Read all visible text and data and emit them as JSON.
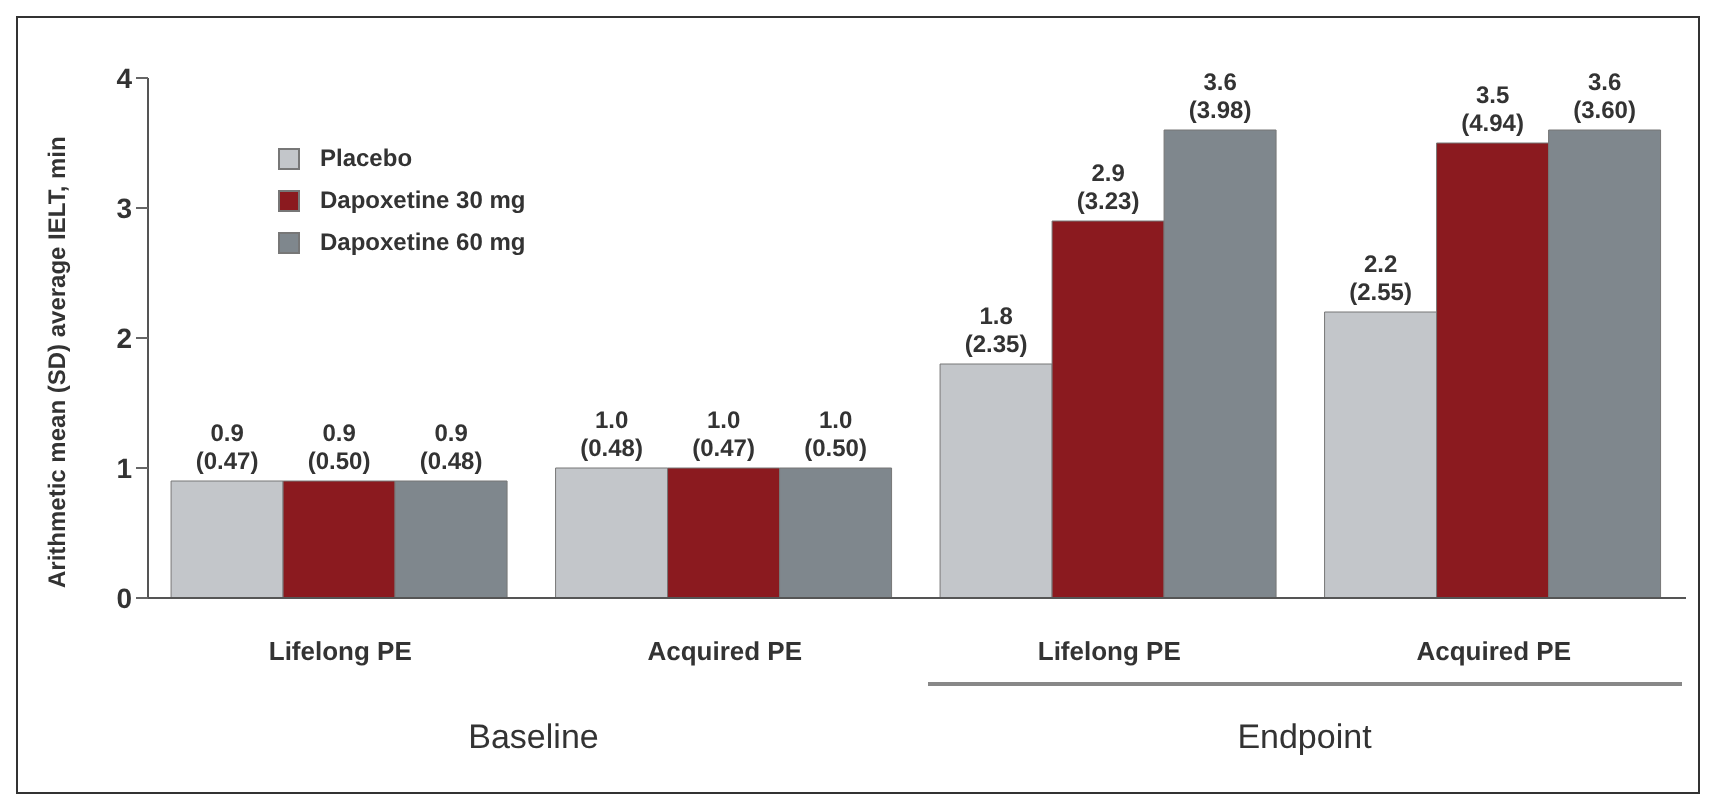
{
  "chart_data": {
    "type": "bar",
    "ylabel": "Arithmetic mean (SD) average IELT, min",
    "categories": [
      "Lifelong PE",
      "Acquired PE",
      "Lifelong PE",
      "Acquired PE"
    ],
    "series": [
      {
        "name": "Placebo",
        "color": "#c3c6ca",
        "values": [
          0.9,
          1.0,
          1.8,
          2.2
        ],
        "value_labels": [
          "0.9 (0.47)",
          "1.0 (0.48)",
          "1.8 (2.35)",
          "2.2 (2.55)"
        ]
      },
      {
        "name": "Dapoxetine 30 mg",
        "color": "#8b1a1f",
        "values": [
          0.9,
          1.0,
          2.9,
          3.5
        ],
        "value_labels": [
          "0.9 (0.50)",
          "1.0 (0.47)",
          "2.9 (3.23)",
          "3.5 (4.94)"
        ]
      },
      {
        "name": "Dapoxetine 60 mg",
        "color": "#7f878d",
        "values": [
          0.9,
          1.0,
          3.6,
          3.6
        ],
        "value_labels": [
          "0.9 (0.48)",
          "1.0 (0.50)",
          "3.6 (3.98)",
          "3.6 (3.60)"
        ]
      }
    ],
    "ylim": [
      0,
      4
    ],
    "yticks": [
      0,
      1,
      2,
      3,
      4
    ],
    "grid": false,
    "legend": "top left",
    "annotations": [
      "Baseline",
      "Endpoint"
    ]
  }
}
